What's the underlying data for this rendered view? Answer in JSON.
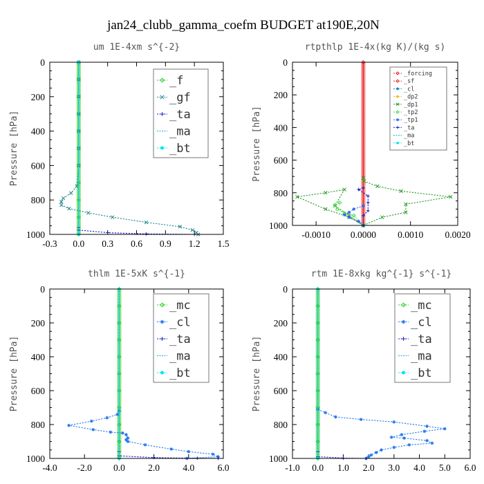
{
  "title": "jan24_clubb_gamma_coefm  BUDGET at190E,20N",
  "colors": {
    "mc": "#22cc22",
    "cl": "#2277ee",
    "ta": "#1a1acc",
    "ma": "#11aadd",
    "bt": "#00e5ee",
    "f": "#22cc22",
    "gf": "#228888",
    "forcing": "#ee2222",
    "sf": "#dd2222",
    "dp2": "#eebb22",
    "dp1": "#2a9a2a",
    "tp2": "#44dd44",
    "tp1": "#3366ee",
    "ylabel": "#777777"
  },
  "chart_data": [
    {
      "type": "line",
      "title": "um  1E-4xm s^{-2}",
      "ylabel": "Pressure [hPa]",
      "xlim": [
        -0.3,
        1.5
      ],
      "ylim": [
        1000,
        0
      ],
      "xticks": [
        "-0.3",
        "0.0",
        "0.3",
        "0.6",
        "0.9",
        "1.2",
        "1.5"
      ],
      "yticks": [
        "0",
        "200",
        "400",
        "600",
        "800",
        "1000"
      ],
      "legend": {
        "position": "top-right",
        "entries": [
          "_f",
          "_gf",
          "_ta",
          "_ma",
          "_bt"
        ]
      },
      "series": [
        {
          "name": "_f",
          "color": "f",
          "marker": "diamond",
          "x": [
            0.0,
            0.0,
            0.0,
            0.0,
            0.0,
            0.0,
            0.0,
            0.0,
            0.0,
            0.0,
            0.0
          ],
          "y": [
            0,
            100,
            200,
            300,
            400,
            500,
            600,
            700,
            800,
            900,
            1000
          ]
        },
        {
          "name": "_gf",
          "color": "gf",
          "marker": "x",
          "x": [
            0.0,
            0.0,
            0.0,
            0.0,
            0.0,
            0.0,
            0.0,
            -0.02,
            -0.08,
            -0.16,
            -0.18,
            -0.18,
            -0.1,
            0.1,
            0.35,
            0.7,
            1.05,
            1.18,
            1.22,
            1.24
          ],
          "y": [
            0,
            100,
            200,
            300,
            400,
            500,
            600,
            720,
            760,
            790,
            810,
            830,
            850,
            875,
            900,
            930,
            955,
            975,
            990,
            1000
          ]
        },
        {
          "name": "_ta",
          "color": "ta",
          "marker": "plus",
          "x": [
            0.0,
            0.0,
            0.3,
            0.7,
            1.2
          ],
          "y": [
            960,
            975,
            990,
            997,
            1000
          ]
        },
        {
          "name": "_ma",
          "color": "ma",
          "marker": "none",
          "x": [
            0.0,
            0.0
          ],
          "y": [
            0,
            1000
          ]
        },
        {
          "name": "_bt",
          "color": "bt",
          "marker": "dot",
          "x": [
            0.0,
            0.0
          ],
          "y": [
            0,
            1000
          ]
        }
      ]
    },
    {
      "type": "line",
      "title": "rtpthlp  1E-4x(kg K)/(kg s)",
      "ylabel": "Pressure [hPa]",
      "xlim": [
        -0.0015,
        0.002
      ],
      "ylim": [
        1000,
        0
      ],
      "xticks": [
        "-0.0010",
        "0.0000",
        "0.0010",
        "0.0020"
      ],
      "yticks": [
        "0",
        "200",
        "400",
        "600",
        "800",
        "1000"
      ],
      "legend": {
        "position": "top-right",
        "entries": [
          "_forcing",
          "_sf",
          "_cl",
          "_dp2",
          "_dp1",
          "_tp2",
          "_tp1",
          "_ta",
          "_ma",
          "_bt"
        ]
      },
      "series": [
        {
          "name": "_forcing",
          "color": "forcing",
          "marker": "diamond",
          "x": [
            0.0,
            0.0
          ],
          "y": [
            0,
            1000
          ]
        },
        {
          "name": "_sf",
          "color": "sf",
          "marker": "none",
          "x": [
            0.0,
            0.0
          ],
          "y": [
            0,
            1000
          ]
        },
        {
          "name": "_dp1",
          "color": "dp1",
          "marker": "x",
          "x": [
            0.0,
            2e-05,
            0.0003,
            0.0008,
            0.00185,
            0.0009,
            0.0009,
            0.0004,
            0.0,
            -0.0003,
            -0.0008,
            -0.0014,
            -0.0008,
            -0.0004,
            -0.0006,
            -0.0003,
            0.0
          ],
          "y": [
            710,
            730,
            760,
            790,
            825,
            870,
            920,
            950,
            1000,
            950,
            900,
            825,
            800,
            780,
            880,
            940,
            1000
          ]
        },
        {
          "name": "_tp2",
          "color": "tp2",
          "marker": "diamond",
          "x": [
            -0.0005,
            -0.0006,
            -0.00055,
            -0.0004,
            -0.0002,
            0.0
          ],
          "y": [
            860,
            875,
            900,
            925,
            940,
            1000
          ]
        },
        {
          "name": "_tp1",
          "color": "tp1",
          "marker": "star",
          "x": [
            0.0,
            -0.0002,
            -0.0003,
            -0.0004,
            -0.0003,
            -0.0001,
            0.0
          ],
          "y": [
            880,
            900,
            920,
            935,
            950,
            975,
            1000
          ]
        },
        {
          "name": "_ta",
          "color": "ta",
          "marker": "plus",
          "x": [
            0.0,
            -0.0001,
            0.0001,
            0.0001,
            0.0001,
            0.0,
            0.0
          ],
          "y": [
            770,
            780,
            820,
            860,
            910,
            940,
            1000
          ]
        }
      ]
    },
    {
      "type": "line",
      "title": "thlm  1E-5xK s^{-1}",
      "ylabel": "Pressure [hPa]",
      "xlim": [
        -4.0,
        6.0
      ],
      "ylim": [
        1000,
        0
      ],
      "xticks": [
        "-4.0",
        "-2.0",
        "0.0",
        "2.0",
        "4.0",
        "6.0"
      ],
      "yticks": [
        "0",
        "200",
        "400",
        "600",
        "800",
        "1000"
      ],
      "legend": {
        "position": "top-right",
        "entries": [
          "_mc",
          "_cl",
          "_ta",
          "_ma",
          "_bt"
        ]
      },
      "series": [
        {
          "name": "_mc",
          "color": "mc",
          "marker": "diamond",
          "x": [
            0.0,
            0.0,
            0.0,
            0.0,
            0.0,
            0.0,
            0.0,
            0.0,
            0.0,
            0.0,
            0.0
          ],
          "y": [
            0,
            100,
            200,
            300,
            400,
            500,
            600,
            700,
            800,
            900,
            1000
          ]
        },
        {
          "name": "_cl",
          "color": "cl",
          "marker": "star",
          "x": [
            0.0,
            -0.1,
            -0.7,
            -1.6,
            -2.9,
            -1.5,
            -0.5,
            0.2,
            0.4,
            0.5,
            0.4,
            0.5,
            1.5,
            3.0,
            4.0,
            5.4,
            5.7,
            3.9
          ],
          "y": [
            720,
            740,
            760,
            780,
            805,
            830,
            845,
            850,
            860,
            880,
            890,
            900,
            920,
            945,
            960,
            975,
            990,
            1000
          ]
        },
        {
          "name": "_ta",
          "color": "ta",
          "marker": "plus",
          "x": [
            0.0,
            0.0,
            2.0,
            4.5,
            5.7
          ],
          "y": [
            960,
            985,
            995,
            999,
            1000
          ]
        },
        {
          "name": "_ma",
          "color": "ma",
          "marker": "none",
          "x": [
            0.0,
            0.0
          ],
          "y": [
            0,
            1000
          ]
        },
        {
          "name": "_bt",
          "color": "bt",
          "marker": "dot",
          "x": [
            0.0,
            0.0
          ],
          "y": [
            0,
            1000
          ]
        }
      ]
    },
    {
      "type": "line",
      "title": "rtm  1E-8xkg kg^{-1} s^{-1}",
      "ylabel": "Pressure [hPa]",
      "xlim": [
        -1.0,
        6.0
      ],
      "ylim": [
        1000,
        0
      ],
      "xticks": [
        "-1.0",
        "0.0",
        "1.0",
        "2.0",
        "3.0",
        "4.0",
        "5.0",
        "6.0"
      ],
      "yticks": [
        "0",
        "200",
        "400",
        "600",
        "800",
        "1000"
      ],
      "legend": {
        "position": "top-right",
        "entries": [
          "_mc",
          "_cl",
          "_ta",
          "_ma",
          "_bt"
        ]
      },
      "series": [
        {
          "name": "_mc",
          "color": "mc",
          "marker": "diamond",
          "x": [
            0.0,
            0.0,
            0.0,
            0.0,
            0.0,
            0.0,
            0.0,
            0.0,
            0.0,
            0.0,
            0.0
          ],
          "y": [
            0,
            100,
            200,
            300,
            400,
            500,
            600,
            700,
            800,
            900,
            1000
          ]
        },
        {
          "name": "_cl",
          "color": "cl",
          "marker": "star",
          "x": [
            0.0,
            0.3,
            0.7,
            1.7,
            3.0,
            4.3,
            5.0,
            4.2,
            3.3,
            2.9,
            3.4,
            4.3,
            4.5,
            3.6,
            3.0,
            2.5,
            2.3,
            2.1,
            2.0,
            1.9
          ],
          "y": [
            710,
            730,
            755,
            770,
            785,
            810,
            825,
            840,
            860,
            875,
            880,
            895,
            910,
            920,
            935,
            950,
            965,
            980,
            990,
            1000
          ]
        },
        {
          "name": "_ta",
          "color": "ta",
          "marker": "plus",
          "x": [
            0.0,
            0.0,
            1.0,
            1.9
          ],
          "y": [
            960,
            990,
            998,
            1000
          ]
        },
        {
          "name": "_ma",
          "color": "ma",
          "marker": "none",
          "x": [
            0.0,
            0.0
          ],
          "y": [
            0,
            1000
          ]
        },
        {
          "name": "_bt",
          "color": "bt",
          "marker": "dot",
          "x": [
            0.0,
            0.0
          ],
          "y": [
            0,
            1000
          ]
        }
      ]
    }
  ]
}
